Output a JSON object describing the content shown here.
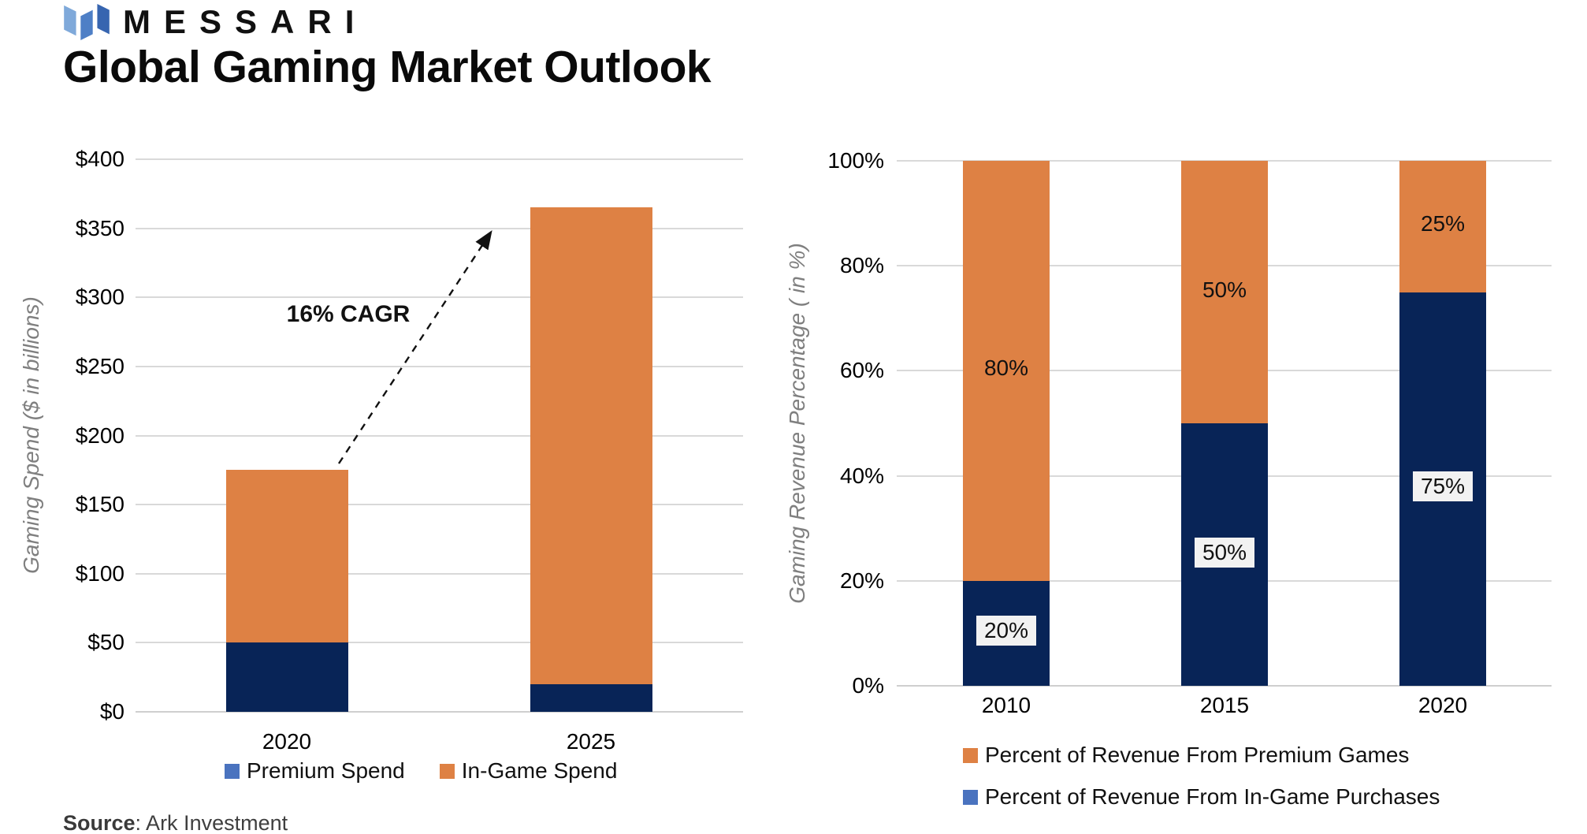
{
  "header": {
    "brand": "MESSARI",
    "title": "Global Gaming Market Outlook"
  },
  "source": {
    "label": "Source",
    "rest": ": Ark Investment"
  },
  "colors": {
    "orange": "#DE8144",
    "navy": "#082457",
    "legend_blue": "#4A73BF",
    "grid": "#D9D9D9",
    "axis_title": "#7F7F7F",
    "label_box_bg": "#F2F2F2",
    "logo_light": "#7FA9DA",
    "logo_mid": "#4E7FC6",
    "logo_dark": "#3765B0"
  },
  "chart_data": [
    {
      "type": "bar",
      "stacked": true,
      "ylabel": "Gaming Spend ($ in billions)",
      "categories": [
        "2020",
        "2025"
      ],
      "series": [
        {
          "name": "Premium Spend",
          "color_key": "navy",
          "values": [
            50,
            20
          ]
        },
        {
          "name": "In-Game Spend",
          "color_key": "orange",
          "values": [
            125,
            345
          ]
        }
      ],
      "totals": [
        175,
        365
      ],
      "ylim": [
        0,
        400
      ],
      "yticks": [
        "$400",
        "$350",
        "$300",
        "$250",
        "$200",
        "$150",
        "$100",
        "$50",
        "$0"
      ],
      "ytick_values": [
        400,
        350,
        300,
        250,
        200,
        150,
        100,
        50,
        0
      ],
      "annotation": "16% CAGR",
      "legend_position": "bottom",
      "grid": true
    },
    {
      "type": "bar",
      "stacked": true,
      "ylabel": "Gaming Revenue Percentage ( in %)",
      "categories": [
        "2010",
        "2015",
        "2020"
      ],
      "series": [
        {
          "name": "Percent of Revenue From In-Game Purchases",
          "color_key": "navy",
          "values": [
            20,
            50,
            75
          ],
          "labels": [
            "20%",
            "50%",
            "75%"
          ],
          "boxed": true
        },
        {
          "name": "Percent of Revenue From Premium Games",
          "color_key": "orange",
          "values": [
            80,
            50,
            25
          ],
          "labels": [
            "80%",
            "50%",
            "25%"
          ],
          "boxed": false
        }
      ],
      "ylim": [
        0,
        100
      ],
      "yticks": [
        "100%",
        "80%",
        "60%",
        "40%",
        "20%",
        "0%"
      ],
      "ytick_values": [
        100,
        80,
        60,
        40,
        20,
        0
      ],
      "legend_position": "bottom",
      "grid": true
    }
  ],
  "left_legend": {
    "items": [
      {
        "label": "Premium Spend",
        "marker": "legend_blue"
      },
      {
        "label": "In-Game Spend",
        "marker": "orange"
      }
    ]
  },
  "right_legend": {
    "items": [
      {
        "label": "Percent of Revenue From Premium Games",
        "marker": "orange"
      },
      {
        "label": "Percent of Revenue From In-Game Purchases",
        "marker": "legend_blue"
      }
    ]
  }
}
